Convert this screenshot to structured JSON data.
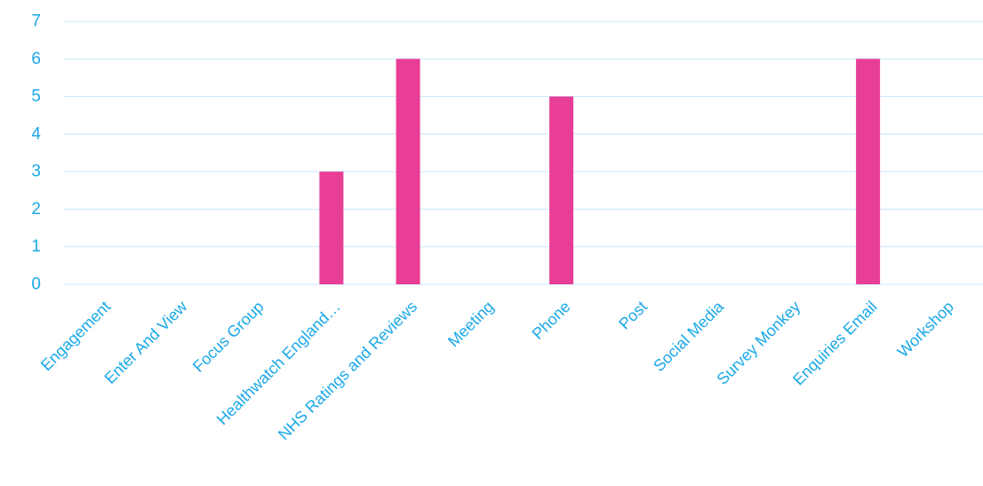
{
  "chart_data": {
    "type": "bar",
    "categories": [
      "Engagement",
      "Enter And View",
      "Focus Group",
      "Healthwatch England…",
      "NHS Ratings and Reviews",
      "Meeting",
      "Phone",
      "Post",
      "Social Media",
      "Survey Monkey",
      "Enquiries Email",
      "Workshop"
    ],
    "values": [
      0,
      0,
      0,
      3,
      6,
      0,
      5,
      0,
      0,
      0,
      6,
      0
    ],
    "yticks": [
      "0",
      "1",
      "2",
      "3",
      "4",
      "5",
      "6",
      "7"
    ],
    "ylim": [
      0,
      7
    ],
    "grid": true,
    "legend": "none",
    "colors": {
      "bar": "#e83e96",
      "grid": "#c8e7f7",
      "text": "#1aa8e8"
    }
  }
}
